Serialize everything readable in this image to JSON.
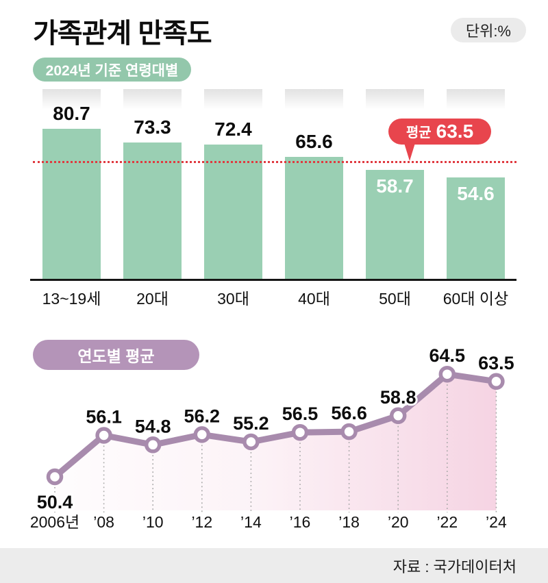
{
  "header": {
    "title": "가족관계 만족도",
    "unit_label": "단위:%"
  },
  "footer": {
    "source": "자료 : 국가데이터처"
  },
  "colors": {
    "bar_green": "#9acfb3",
    "badge_green": "#93c7ab",
    "badge_purple": "#b494b8",
    "line_purple": "#a88bad",
    "accent_red": "#e8454d",
    "avg_dotted_red": "#e0393f",
    "area_pink": "#f3c9dc",
    "footer_gray": "#ececec"
  },
  "chart_data": [
    {
      "type": "bar",
      "title": "2024년 기준 연령대별",
      "badge_label": "2024년 기준 연령대별",
      "unit": "%",
      "categories": [
        "13~19세",
        "20대",
        "30대",
        "40대",
        "50대",
        "60대 이상"
      ],
      "values": [
        80.7,
        73.3,
        72.4,
        65.6,
        58.7,
        54.6
      ],
      "average": 63.5,
      "average_label": "평균",
      "average_value_text": "63.5",
      "ylim": [
        0,
        102
      ],
      "grid": false,
      "note": "values below average are labeled in white inside the bar"
    },
    {
      "type": "line",
      "title": "연도별 평균",
      "badge_label": "연도별 평균",
      "unit": "%",
      "x": [
        "2006년",
        "’08",
        "’10",
        "’12",
        "’14",
        "’16",
        "’18",
        "’20",
        "’22",
        "’24"
      ],
      "values": [
        50.4,
        56.1,
        54.8,
        56.2,
        55.2,
        56.5,
        56.6,
        58.8,
        64.5,
        63.5
      ],
      "ylim": [
        48,
        68
      ],
      "grid": "dotted-vertical-guides",
      "area_fill": "pink gradient, stronger toward right",
      "first_label_below_point": true
    }
  ]
}
